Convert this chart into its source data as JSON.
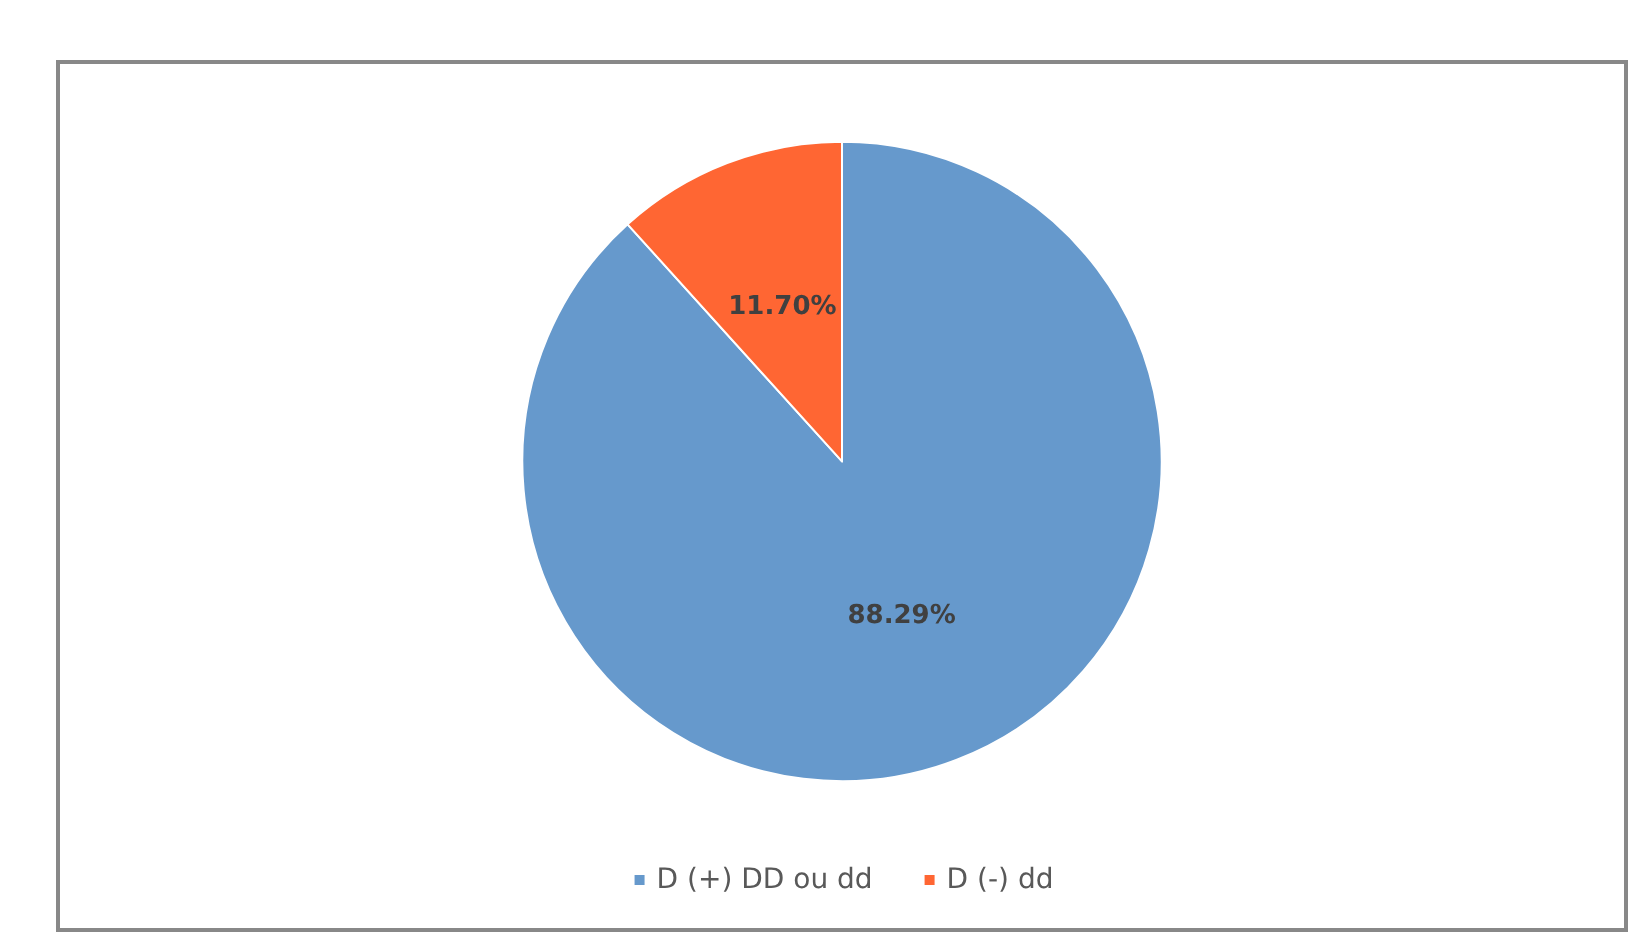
{
  "chart_data": {
    "type": "pie",
    "categories": [
      "D (+) DD ou dd",
      "D (-) dd"
    ],
    "values": [
      88.29,
      11.7
    ],
    "colors": [
      "#6699cc",
      "#ff6633"
    ],
    "value_labels": [
      "88.29%",
      "11.70%"
    ],
    "legend": "bottom"
  }
}
